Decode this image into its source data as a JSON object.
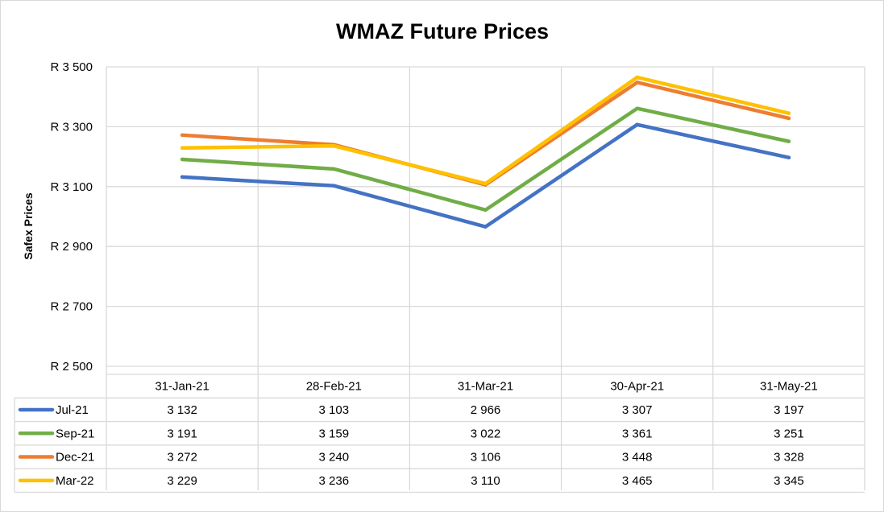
{
  "chart_data": {
    "type": "line",
    "title": "WMAZ Future Prices",
    "xlabel": "",
    "ylabel": "Safex Prices",
    "ylim": [
      2500,
      3500
    ],
    "y_ticks": [
      2500,
      2700,
      2900,
      3100,
      3300,
      3500
    ],
    "y_tick_labels": [
      "R 2 500",
      "R 2 700",
      "R 2 900",
      "R 3 100",
      "R 3 300",
      "R 3 500"
    ],
    "grid": true,
    "legend": "data-table",
    "categories": [
      "31-Jan-21",
      "28-Feb-21",
      "31-Mar-21",
      "30-Apr-21",
      "31-May-21"
    ],
    "series": [
      {
        "name": "Jul-21",
        "color": "#4472c4",
        "values": [
          3132,
          3103,
          2966,
          3307,
          3197
        ],
        "labels": [
          "3 132",
          "3 103",
          "2 966",
          "3 307",
          "3 197"
        ]
      },
      {
        "name": "Sep-21",
        "color": "#70ad47",
        "values": [
          3191,
          3159,
          3022,
          3361,
          3251
        ],
        "labels": [
          "3 191",
          "3 159",
          "3 022",
          "3 361",
          "3 251"
        ]
      },
      {
        "name": "Dec-21",
        "color": "#ed7d31",
        "values": [
          3272,
          3240,
          3106,
          3448,
          3328
        ],
        "labels": [
          "3 272",
          "3 240",
          "3 106",
          "3 448",
          "3 328"
        ]
      },
      {
        "name": "Mar-22",
        "color": "#ffc000",
        "values": [
          3229,
          3236,
          3110,
          3465,
          3345
        ],
        "labels": [
          "3 229",
          "3 236",
          "3 110",
          "3 465",
          "3 345"
        ]
      }
    ]
  }
}
